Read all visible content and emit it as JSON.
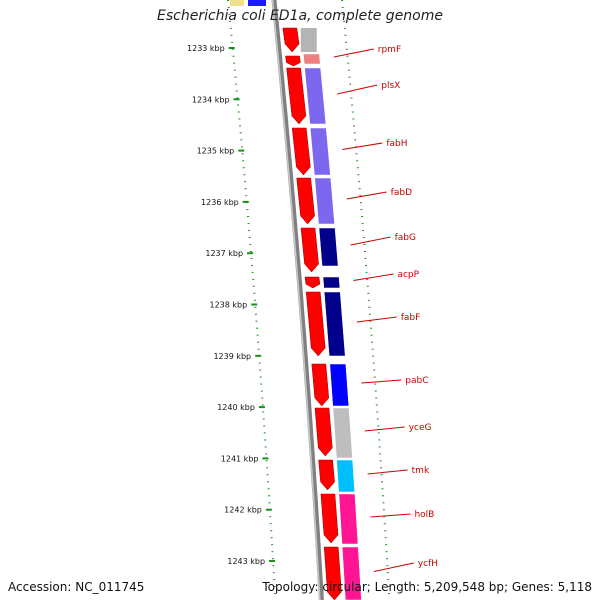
{
  "title": "Escherichia coli ED1a, complete genome",
  "footer": {
    "accession": "Accession: NC_011745",
    "summary": "Topology: circular; Length: 5,209,548 bp; Genes: 5,118"
  },
  "colors": {
    "forward_gene": "#ff0000",
    "backbone": "#808080",
    "label": "#cc0000",
    "tick": "#1a8f1a"
  },
  "ticks": [
    "1233 kbp",
    "1234 kbp",
    "1235 kbp",
    "1236 kbp",
    "1237 kbp",
    "1238 kbp",
    "1239 kbp",
    "1240 kbp",
    "1241 kbp",
    "1242 kbp",
    "1243 kbp"
  ],
  "genes": [
    {
      "name": "rpmF",
      "color": "#f08080"
    },
    {
      "name": "plsX",
      "color": "#7b68ee"
    },
    {
      "name": "fabH",
      "color": "#7b68ee"
    },
    {
      "name": "fabD",
      "color": "#7b68ee"
    },
    {
      "name": "fabG",
      "color": "#00008b"
    },
    {
      "name": "acpP",
      "color": "#00008b"
    },
    {
      "name": "fabF",
      "color": "#00008b"
    },
    {
      "name": "pabC",
      "color": "#0000ff"
    },
    {
      "name": "yceG",
      "color": "#bebebe"
    },
    {
      "name": "tmk",
      "color": "#00bfff"
    },
    {
      "name": "holB",
      "color": "#ff1493"
    },
    {
      "name": "ycfH",
      "color": "#ff1493"
    }
  ]
}
